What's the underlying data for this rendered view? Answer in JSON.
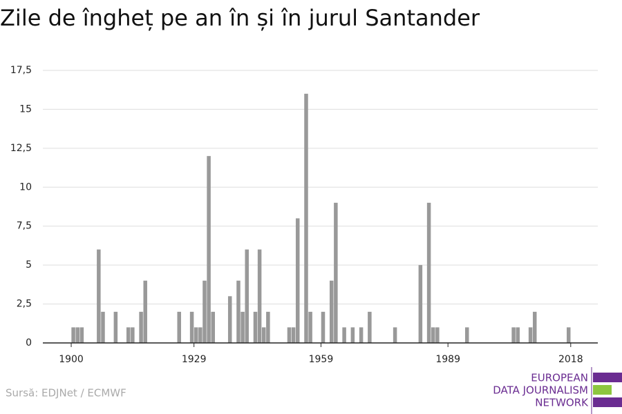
{
  "chart_data": {
    "type": "bar",
    "title": "Zile de îngheț pe an în și în jurul Santander",
    "source": "Sursă: EDJNet / ECMWF",
    "logo": [
      "EUROPEAN",
      "DATA JOURNALISM",
      "NETWORK"
    ],
    "color": "#999999",
    "x": [
      1900,
      1901,
      1902,
      1903,
      1904,
      1905,
      1906,
      1907,
      1908,
      1909,
      1910,
      1911,
      1912,
      1913,
      1914,
      1915,
      1916,
      1917,
      1918,
      1919,
      1920,
      1921,
      1922,
      1923,
      1924,
      1925,
      1926,
      1927,
      1928,
      1929,
      1930,
      1931,
      1932,
      1933,
      1934,
      1935,
      1936,
      1937,
      1938,
      1939,
      1940,
      1941,
      1942,
      1943,
      1944,
      1945,
      1946,
      1947,
      1948,
      1949,
      1950,
      1951,
      1952,
      1953,
      1954,
      1955,
      1956,
      1957,
      1958,
      1959,
      1960,
      1961,
      1962,
      1963,
      1964,
      1965,
      1966,
      1967,
      1968,
      1969,
      1970,
      1971,
      1972,
      1973,
      1974,
      1975,
      1976,
      1977,
      1978,
      1979,
      1980,
      1981,
      1982,
      1983,
      1984,
      1985,
      1986,
      1987,
      1988,
      1989,
      1990,
      1991,
      1992,
      1993,
      1994,
      1995,
      1996,
      1997,
      1998,
      1999,
      2000,
      2001,
      2002,
      2003,
      2004,
      2005,
      2006,
      2007,
      2008,
      2009,
      2010,
      2011,
      2012,
      2013,
      2014,
      2015,
      2016,
      2017,
      2018
    ],
    "values": [
      1,
      1,
      1,
      0,
      0,
      0,
      6,
      2,
      0,
      0,
      2,
      0,
      0,
      1,
      1,
      0,
      2,
      4,
      0,
      0,
      0,
      0,
      0,
      0,
      0,
      2,
      0,
      0,
      2,
      1,
      1,
      4,
      12,
      2,
      0,
      0,
      0,
      3,
      0,
      4,
      2,
      6,
      0,
      2,
      6,
      1,
      2,
      0,
      0,
      0,
      0,
      1,
      1,
      8,
      0,
      16,
      2,
      0,
      0,
      2,
      0,
      4,
      9,
      0,
      1,
      0,
      1,
      0,
      1,
      0,
      2,
      0,
      0,
      0,
      0,
      0,
      1,
      0,
      0,
      0,
      0,
      0,
      5,
      0,
      9,
      1,
      1,
      0,
      0,
      0,
      0,
      0,
      0,
      1,
      0,
      0,
      0,
      0,
      0,
      0,
      0,
      0,
      0,
      0,
      1,
      1,
      0,
      0,
      1,
      2,
      0,
      0,
      0,
      0,
      0,
      0,
      0,
      1,
      0
    ],
    "xlim": [
      1893.3,
      2024.4
    ],
    "xticks": [
      1900,
      1929,
      1959,
      1989,
      2018
    ],
    "ylim": [
      0,
      17.5
    ],
    "yticks": [
      0,
      {
        "value": 2.5,
        "label": "2,5"
      },
      5,
      {
        "value": 7.5,
        "label": "7,5"
      },
      10,
      {
        "value": 12.5,
        "label": "12,5"
      },
      15,
      {
        "value": 17.5,
        "label": "17,5"
      }
    ],
    "grid": true
  }
}
